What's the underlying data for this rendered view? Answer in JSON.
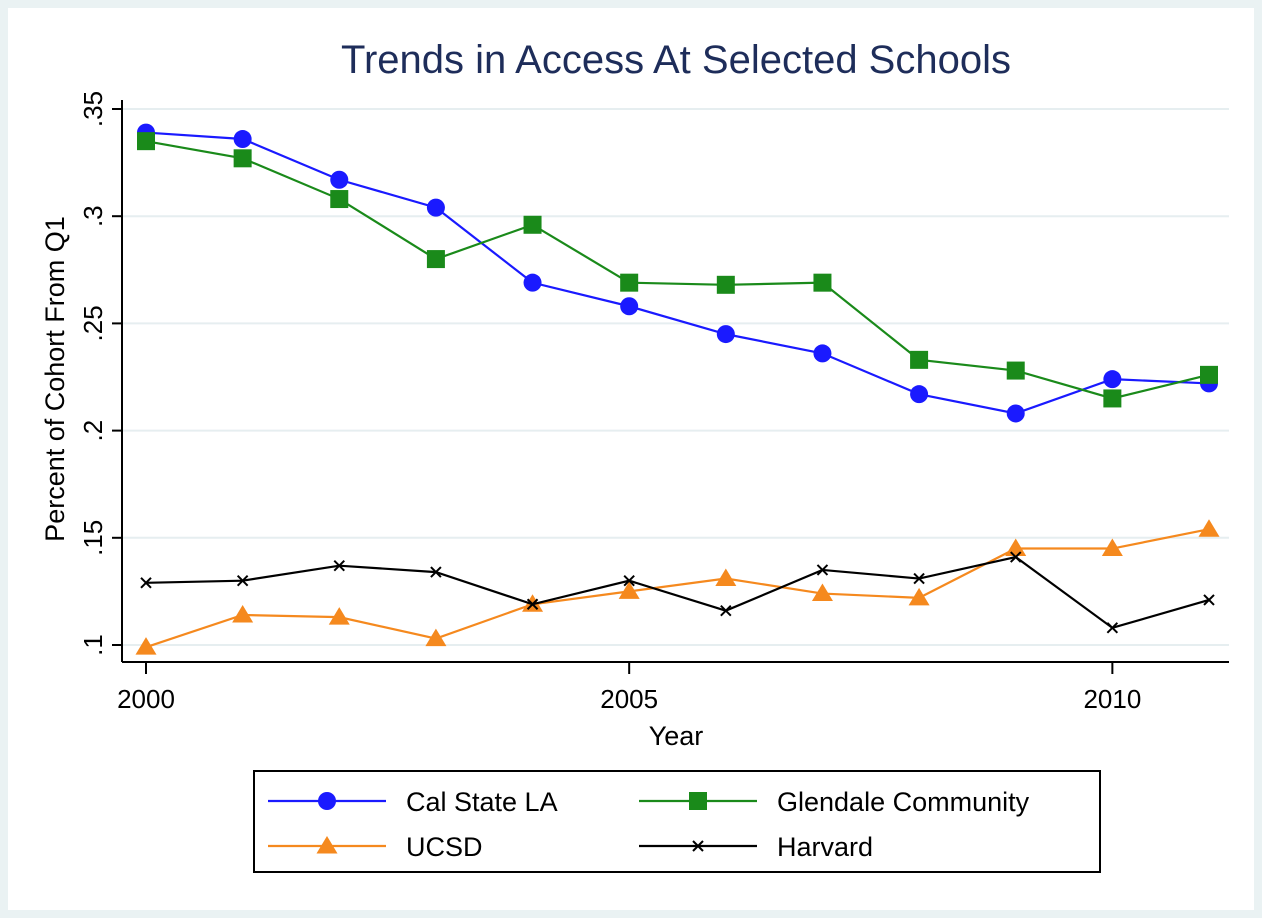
{
  "chart_data": {
    "type": "line",
    "title": "Trends in Access At Selected Schools",
    "xlabel": "Year",
    "ylabel": "Percent of Cohort From Q1",
    "xlim": [
      2000,
      2011
    ],
    "ylim": [
      0.1,
      0.35
    ],
    "x_ticks": [
      2000,
      2005,
      2010
    ],
    "x_tick_labels": [
      "2000",
      "2005",
      "2010"
    ],
    "y_ticks": [
      0.1,
      0.15,
      0.2,
      0.25,
      0.3,
      0.35
    ],
    "y_tick_labels": [
      ".1",
      ".15",
      ".2",
      ".25",
      ".3",
      ".35"
    ],
    "grid": true,
    "legend_placement": "bottom",
    "x": [
      2000,
      2001,
      2002,
      2003,
      2004,
      2005,
      2006,
      2007,
      2008,
      2009,
      2010,
      2011
    ],
    "series": [
      {
        "name": "Cal State LA",
        "color": "#1a1aff",
        "marker": "circle",
        "values": [
          0.339,
          0.336,
          0.317,
          0.304,
          0.269,
          0.258,
          0.245,
          0.236,
          0.217,
          0.208,
          0.224,
          0.222
        ]
      },
      {
        "name": "Glendale Community",
        "color": "#1a8a1a",
        "marker": "square",
        "values": [
          0.335,
          0.327,
          0.308,
          0.28,
          0.296,
          0.269,
          0.268,
          0.269,
          0.233,
          0.228,
          0.215,
          0.226
        ]
      },
      {
        "name": "UCSD",
        "color": "#f5891e",
        "marker": "triangle",
        "values": [
          0.099,
          0.114,
          0.113,
          0.103,
          0.119,
          0.125,
          0.131,
          0.124,
          0.122,
          0.145,
          0.145,
          0.154
        ]
      },
      {
        "name": "Harvard",
        "color": "#000000",
        "marker": "x",
        "values": [
          0.129,
          0.13,
          0.137,
          0.134,
          0.119,
          0.13,
          0.116,
          0.135,
          0.131,
          0.141,
          0.108,
          0.121
        ]
      }
    ]
  },
  "colors": {
    "background": "#eaf2f3",
    "plot_background": "#ffffff",
    "title": "#1e2d5a",
    "grid": "#e6eef0"
  }
}
